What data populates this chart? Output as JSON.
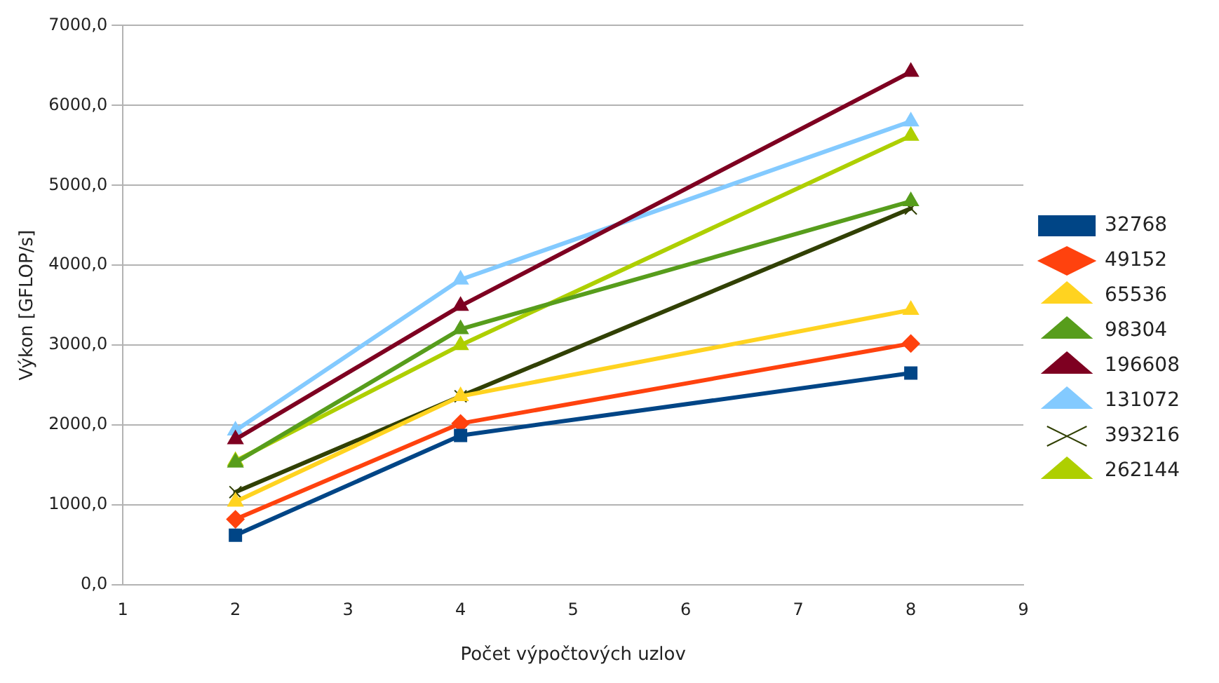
{
  "chart_data": {
    "type": "line",
    "xlabel": "Počet výpočtových uzlov",
    "ylabel": "Výkon [GFLOP/s]",
    "x": [
      2,
      4,
      8
    ],
    "xlim": [
      1,
      9
    ],
    "xticks": [
      1,
      2,
      3,
      4,
      5,
      6,
      7,
      8,
      9
    ],
    "ylim": [
      0,
      7000
    ],
    "yticks": [
      {
        "value": 0,
        "label": "0,0"
      },
      {
        "value": 1000,
        "label": "1000,0"
      },
      {
        "value": 2000,
        "label": "2000,0"
      },
      {
        "value": 3000,
        "label": "3000,0"
      },
      {
        "value": 4000,
        "label": "4000,0"
      },
      {
        "value": 5000,
        "label": "5000,0"
      },
      {
        "value": 6000,
        "label": "6000,0"
      },
      {
        "value": 7000,
        "label": "7000,0"
      }
    ],
    "grid": "y",
    "legend": "right",
    "line_style": "solid",
    "series": [
      {
        "name": "32768",
        "color": "#004586",
        "marker": "square",
        "values": [
          620,
          1870,
          2650
        ]
      },
      {
        "name": "49152",
        "color": "#ff420e",
        "marker": "diamond",
        "values": [
          820,
          2020,
          3020
        ]
      },
      {
        "name": "65536",
        "color": "#ffd320",
        "marker": "triangle",
        "values": [
          1040,
          2360,
          3440
        ]
      },
      {
        "name": "98304",
        "color": "#579d1c",
        "marker": "triangle",
        "values": [
          1530,
          3200,
          4800
        ]
      },
      {
        "name": "196608",
        "color": "#7e0021",
        "marker": "triangle",
        "values": [
          1820,
          3490,
          6420
        ]
      },
      {
        "name": "131072",
        "color": "#83caff",
        "marker": "triangle",
        "values": [
          1930,
          3820,
          5800
        ]
      },
      {
        "name": "393216",
        "color": "#314004",
        "marker": "cross",
        "values": [
          1160,
          2360,
          4710
        ]
      },
      {
        "name": "262144",
        "color": "#aecf00",
        "marker": "triangle",
        "values": [
          1550,
          3000,
          5620
        ]
      }
    ]
  }
}
